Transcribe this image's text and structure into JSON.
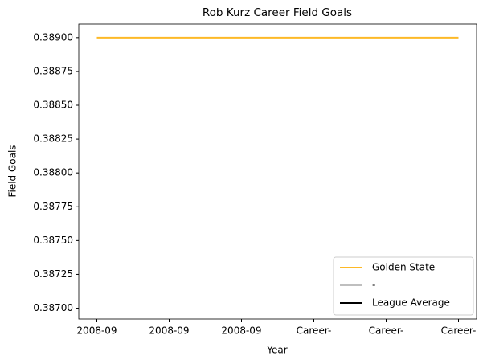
{
  "chart_data": {
    "type": "line",
    "title": "Rob Kurz Career Field Goals",
    "xlabel": "Year",
    "ylabel": "Field Goals",
    "categories": [
      "2008-09",
      "2008-09",
      "2008-09",
      "Career-",
      "Career-",
      "Career-"
    ],
    "series": [
      {
        "name": "Golden State",
        "color": "#fdb927",
        "values": [
          0.389,
          0.389,
          0.389,
          0.389,
          0.389,
          0.389
        ]
      },
      {
        "name": "-",
        "color": "#bfbfbf",
        "values": [
          null,
          null,
          null,
          null,
          null,
          null
        ]
      },
      {
        "name": "League Average",
        "color": "#000000",
        "values": [
          null,
          null,
          null,
          null,
          null,
          null
        ]
      }
    ],
    "ylim": [
      0.38692,
      0.3891
    ],
    "yticks": [
      {
        "value": 0.387,
        "label": "0.38700"
      },
      {
        "value": 0.38725,
        "label": "0.38725"
      },
      {
        "value": 0.3875,
        "label": "0.38750"
      },
      {
        "value": 0.38775,
        "label": "0.38775"
      },
      {
        "value": 0.388,
        "label": "0.38800"
      },
      {
        "value": 0.38825,
        "label": "0.38825"
      },
      {
        "value": 0.3885,
        "label": "0.38850"
      },
      {
        "value": 0.38875,
        "label": "0.38875"
      },
      {
        "value": 0.389,
        "label": "0.38900"
      }
    ],
    "grid": false,
    "legend": "lower right"
  }
}
